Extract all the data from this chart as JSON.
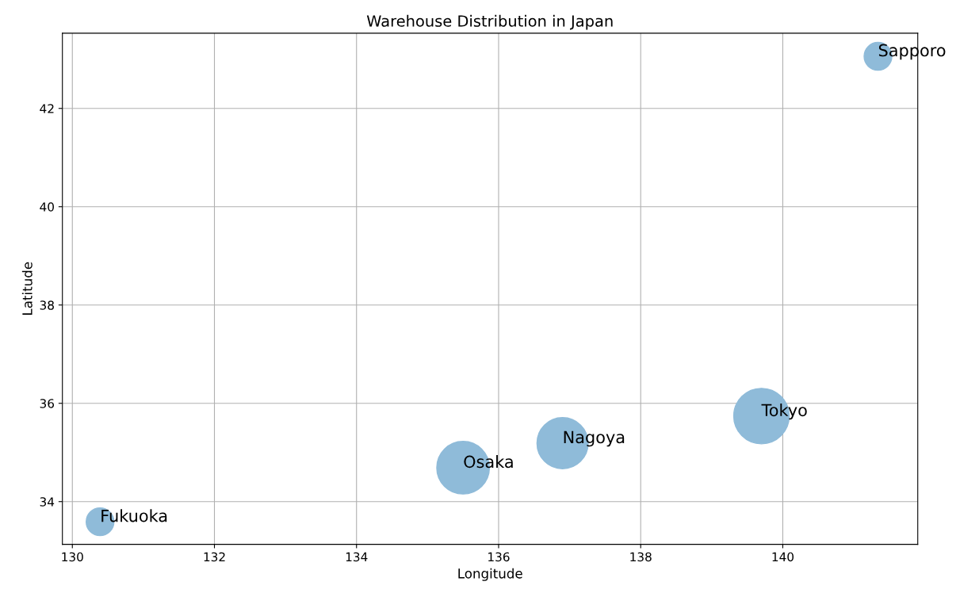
{
  "chart_data": {
    "type": "bubble",
    "title": "Warehouse Distribution in Japan",
    "xlabel": "Longitude",
    "ylabel": "Latitude",
    "x": [
      139.7,
      135.5,
      136.9,
      130.39,
      141.34
    ],
    "values": [
      35.74,
      34.69,
      35.19,
      33.59,
      43.06
    ],
    "sizes": [
      1,
      0.9,
      0.85,
      0.25,
      0.25
    ],
    "color": "#8fbbd9",
    "xlim": [
      129.86,
      141.9
    ],
    "ylim": [
      33.13,
      43.53
    ],
    "xticks": [
      130,
      132,
      134,
      136,
      138,
      140
    ],
    "yticks": [
      34,
      36,
      38,
      40,
      42
    ],
    "grid": true,
    "annotations": [
      {
        "text": "Tokyo",
        "x": 139.7,
        "y": 35.74
      },
      {
        "text": "Osaka",
        "x": 135.5,
        "y": 34.69
      },
      {
        "text": "Nagoya",
        "x": 136.9,
        "y": 35.19
      },
      {
        "text": "Fukuoka",
        "x": 130.39,
        "y": 33.59
      },
      {
        "text": "Sapporo",
        "x": 141.34,
        "y": 43.06
      }
    ]
  }
}
